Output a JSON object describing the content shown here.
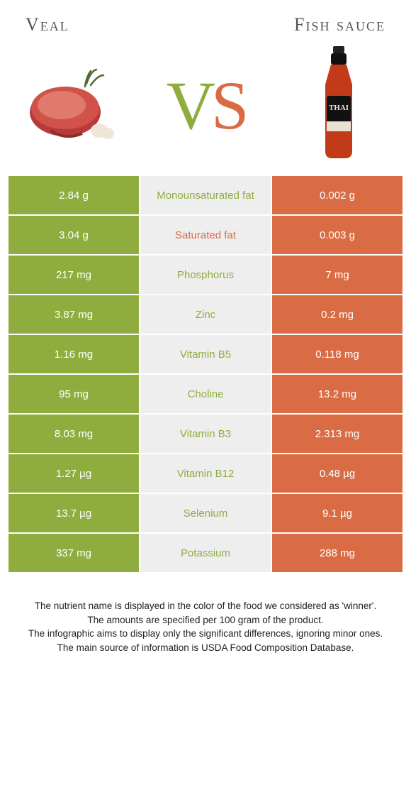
{
  "colors": {
    "left": "#8fad3f",
    "right": "#d96c44",
    "mid_bg": "#eeeeee",
    "page_bg": "#ffffff"
  },
  "header": {
    "left_title": "Veal",
    "right_title": "Fish sauce",
    "vs_v": "V",
    "vs_s": "S"
  },
  "rows": [
    {
      "left": "2.84 g",
      "label": "Monounsaturated fat",
      "right": "0.002 g",
      "winner": "left"
    },
    {
      "left": "3.04 g",
      "label": "Saturated fat",
      "right": "0.003 g",
      "winner": "right"
    },
    {
      "left": "217 mg",
      "label": "Phosphorus",
      "right": "7 mg",
      "winner": "left"
    },
    {
      "left": "3.87 mg",
      "label": "Zinc",
      "right": "0.2 mg",
      "winner": "left"
    },
    {
      "left": "1.16 mg",
      "label": "Vitamin B5",
      "right": "0.118 mg",
      "winner": "left"
    },
    {
      "left": "95 mg",
      "label": "Choline",
      "right": "13.2 mg",
      "winner": "left"
    },
    {
      "left": "8.03 mg",
      "label": "Vitamin B3",
      "right": "2.313 mg",
      "winner": "left"
    },
    {
      "left": "1.27 µg",
      "label": "Vitamin B12",
      "right": "0.48 µg",
      "winner": "left"
    },
    {
      "left": "13.7 µg",
      "label": "Selenium",
      "right": "9.1 µg",
      "winner": "left"
    },
    {
      "left": "337 mg",
      "label": "Potassium",
      "right": "288 mg",
      "winner": "left"
    }
  ],
  "footnote": {
    "l1": "The nutrient name is displayed in the color of the food we considered as 'winner'.",
    "l2": "The amounts are specified per 100 gram of the product.",
    "l3": "The infographic aims to display only the significant differences, ignoring minor ones.",
    "l4": "The main source of information is USDA Food Composition Database."
  }
}
